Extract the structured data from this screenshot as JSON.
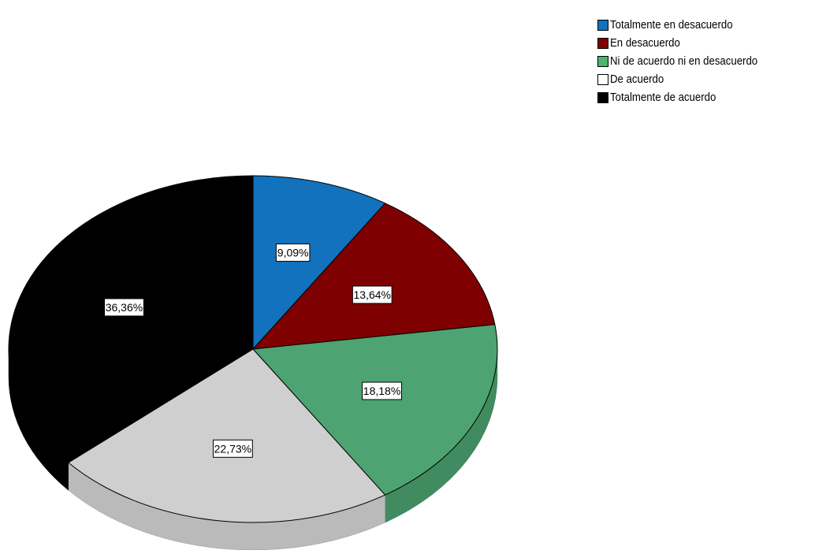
{
  "chart_data": {
    "type": "pie",
    "style": "3d",
    "categories": [
      "Totalmente en desacuerdo",
      "En desacuerdo",
      "Ni de acuerdo ni en desacuerdo",
      "De acuerdo",
      "Totalmente de acuerdo"
    ],
    "values": [
      9.09,
      13.64,
      18.18,
      22.73,
      36.36
    ],
    "data_labels": [
      "9,09%",
      "13,64%",
      "18,18%",
      "22,73%",
      "36,36%"
    ],
    "colors": [
      "#1272bd",
      "#7f0000",
      "#4da371",
      "#cfcfcf",
      "#000000"
    ],
    "legend_colors": [
      "#1272bd",
      "#7f0000",
      "#4db56f",
      "#ffffff",
      "#000000"
    ],
    "title": "",
    "legend_position": "top-right"
  }
}
